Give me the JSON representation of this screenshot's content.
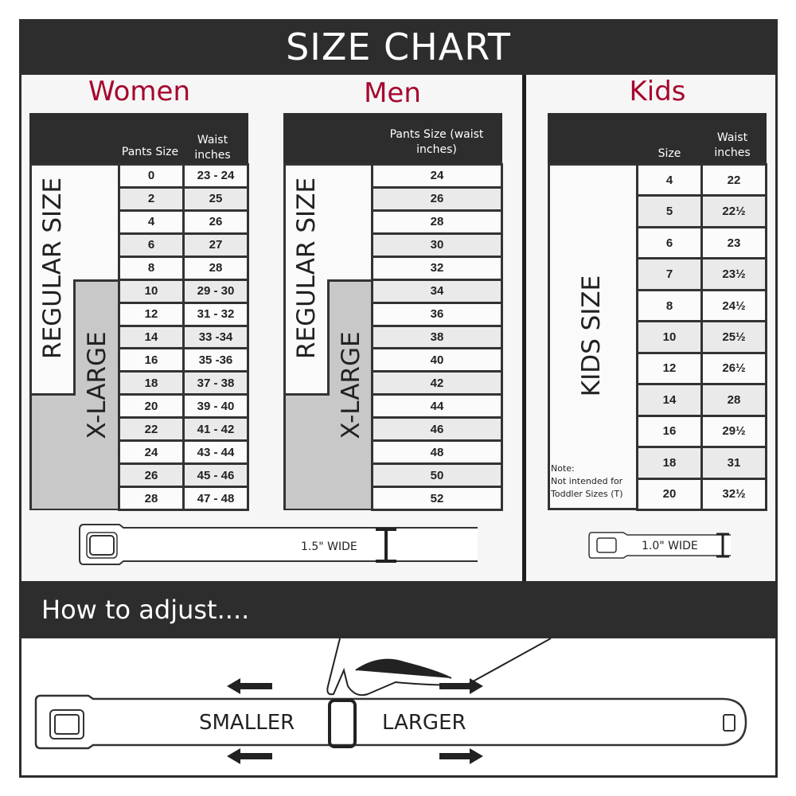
{
  "title": "SIZE CHART",
  "women": {
    "heading": "Women",
    "col1": "Pants Size",
    "col2": "Waist inches",
    "regular_label": "REGULAR SIZE",
    "xlarge_label": "X-LARGE",
    "rows": [
      [
        "0",
        "23 - 24"
      ],
      [
        "2",
        "25"
      ],
      [
        "4",
        "26"
      ],
      [
        "6",
        "27"
      ],
      [
        "8",
        "28"
      ],
      [
        "10",
        "29 - 30"
      ],
      [
        "12",
        "31 - 32"
      ],
      [
        "14",
        "33 -34"
      ],
      [
        "16",
        "35 -36"
      ],
      [
        "18",
        "37 - 38"
      ],
      [
        "20",
        "39 - 40"
      ],
      [
        "22",
        "41 - 42"
      ],
      [
        "24",
        "43 - 44"
      ],
      [
        "26",
        "45 - 46"
      ],
      [
        "28",
        "47 - 48"
      ]
    ],
    "belt_width": "1.5\" WIDE"
  },
  "men": {
    "heading": "Men",
    "col1": "Pants Size (waist inches)",
    "regular_label": "REGULAR SIZE",
    "xlarge_label": "X-LARGE",
    "rows": [
      "24",
      "26",
      "28",
      "30",
      "32",
      "34",
      "36",
      "38",
      "40",
      "42",
      "44",
      "46",
      "48",
      "50",
      "52"
    ]
  },
  "kids": {
    "heading": "Kids",
    "col1": "Size",
    "col2": "Waist inches",
    "label": "KIDS SIZE",
    "note_title": "Note:",
    "note_line1": "Not intended for",
    "note_line2": "Toddler Sizes (T)",
    "rows": [
      [
        "4",
        "22"
      ],
      [
        "5",
        "22½"
      ],
      [
        "6",
        "23"
      ],
      [
        "7",
        "23½"
      ],
      [
        "8",
        "24½"
      ],
      [
        "10",
        "25½"
      ],
      [
        "12",
        "26½"
      ],
      [
        "14",
        "28"
      ],
      [
        "16",
        "29½"
      ],
      [
        "18",
        "31"
      ],
      [
        "20",
        "32½"
      ]
    ],
    "belt_width": "1.0\" WIDE"
  },
  "adjust": {
    "heading": "How to adjust....",
    "smaller": "SMALLER",
    "larger": "LARGER"
  },
  "colors": {
    "dark": "#2d2d2d",
    "accent": "#a6072e",
    "xlarge_fill": "#c8c8c8"
  }
}
